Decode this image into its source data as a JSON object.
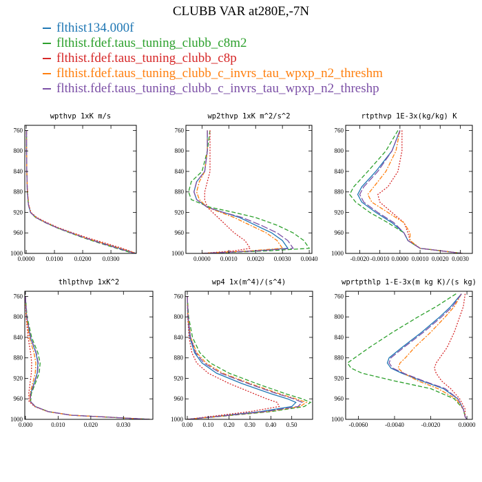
{
  "title": "CLUBB VAR at280E,-7N",
  "legend": [
    {
      "label": "flthist134.000f",
      "color": "#1f77b4",
      "dash": "solid"
    },
    {
      "label": "flthist.fdef.taus_tuning_clubb_c8m2",
      "color": "#2ca02c",
      "dash": "dashed"
    },
    {
      "label": "flthist.fdef.taus_tuning_clubb_c8p",
      "color": "#d62728",
      "dash": "dotted"
    },
    {
      "label": "flthist.fdef.taus_tuning_clubb_c_invrs_tau_wpxp_n2_threshm",
      "color": "#ff7f0e",
      "dash": "dashdot"
    },
    {
      "label": "flthist.fdef.taus_tuning_clubb_c_invrs_tau_wpxp_n2_threshp",
      "color": "#7b4fa6",
      "dash": "longdash"
    }
  ],
  "chart_data": [
    {
      "type": "line",
      "title": "wpthvp   1xK m/s",
      "xlim": [
        -0.0005,
        0.039
      ],
      "ylim": [
        1000,
        750
      ],
      "xticks": [
        0.0,
        0.01,
        0.02,
        0.03
      ],
      "xtick_labels": [
        "0.0000",
        "0.0100",
        "0.0200",
        "0.0300"
      ],
      "yticks": [
        760,
        800,
        840,
        880,
        920,
        960,
        1000
      ],
      "y": [
        760,
        800,
        840,
        880,
        905,
        920,
        930,
        940,
        950,
        960,
        970,
        980,
        990,
        1000
      ],
      "series": [
        {
          "x": [
            0.0001,
            0.0001,
            0.0002,
            0.0004,
            0.0008,
            0.0015,
            0.0035,
            0.007,
            0.011,
            0.016,
            0.021,
            0.027,
            0.033,
            0.039
          ]
        },
        {
          "x": [
            0.0001,
            0.0001,
            0.0002,
            0.0004,
            0.0008,
            0.0015,
            0.0033,
            0.0068,
            0.0108,
            0.0155,
            0.0205,
            0.026,
            0.032,
            0.038
          ]
        },
        {
          "x": [
            0.0001,
            0.0001,
            0.0002,
            0.0004,
            0.0009,
            0.0017,
            0.0038,
            0.0074,
            0.0115,
            0.0165,
            0.022,
            0.028,
            0.034,
            0.039
          ]
        },
        {
          "x": [
            0.0001,
            0.0001,
            0.0002,
            0.0005,
            0.0009,
            0.0016,
            0.0035,
            0.007,
            0.011,
            0.016,
            0.021,
            0.027,
            0.033,
            0.039
          ]
        },
        {
          "x": [
            0.0001,
            0.0001,
            0.0002,
            0.0004,
            0.0008,
            0.0015,
            0.0034,
            0.0069,
            0.0109,
            0.0158,
            0.021,
            0.0265,
            0.0325,
            0.0385
          ]
        }
      ]
    },
    {
      "type": "line",
      "title": "wp2thvp   1xK m^2/s^2",
      "xlim": [
        -0.0006,
        0.0041
      ],
      "ylim": [
        1000,
        750
      ],
      "xticks": [
        0.0,
        0.001,
        0.002,
        0.003,
        0.004
      ],
      "xtick_labels": [
        "0.0000",
        "0.0010",
        "0.0020",
        "0.0030",
        "0.0040"
      ],
      "yticks": [
        760,
        800,
        840,
        880,
        920,
        960,
        1000
      ],
      "y": [
        760,
        800,
        840,
        860,
        880,
        895,
        910,
        920,
        930,
        945,
        960,
        975,
        990,
        995,
        1000
      ],
      "series": [
        {
          "x": [
            0.0002,
            0.0002,
            0.0001,
            -0.0002,
            -0.0003,
            -0.0002,
            0.0002,
            0.0008,
            0.0014,
            0.002,
            0.0026,
            0.003,
            0.0032,
            0.002,
            0.0
          ]
        },
        {
          "x": [
            0.0003,
            0.0002,
            0.0,
            -0.0004,
            -0.0005,
            -0.0004,
            0.0003,
            0.0012,
            0.002,
            0.0028,
            0.0034,
            0.0038,
            0.004,
            0.0025,
            0.0
          ]
        },
        {
          "x": [
            0.0003,
            0.0003,
            0.0003,
            0.0002,
            0.0001,
            0.0001,
            0.0002,
            0.0004,
            0.0006,
            0.0009,
            0.0012,
            0.0016,
            0.0018,
            0.0012,
            0.0
          ]
        },
        {
          "x": [
            0.0002,
            0.0002,
            0.0001,
            -0.0001,
            -0.0002,
            -0.0001,
            0.0002,
            0.0007,
            0.0012,
            0.0018,
            0.0024,
            0.0028,
            0.003,
            0.0018,
            0.0
          ]
        },
        {
          "x": [
            0.0002,
            0.0002,
            0.0001,
            -0.0002,
            -0.0003,
            -0.0002,
            0.0002,
            0.0008,
            0.0015,
            0.0022,
            0.0028,
            0.0032,
            0.0034,
            0.0021,
            0.0
          ]
        }
      ]
    },
    {
      "type": "line",
      "title": "rtpthvp   1E-3x(kg/kg) K",
      "xlim": [
        -0.0027,
        0.0036
      ],
      "ylim": [
        1000,
        750
      ],
      "xticks": [
        -0.002,
        -0.001,
        0.0,
        0.001,
        0.002,
        0.003
      ],
      "xtick_labels": [
        "-0.0020",
        "-0.0010",
        "0.0000",
        "0.0010",
        "0.0020",
        "0.0030"
      ],
      "yticks": [
        760,
        800,
        840,
        880,
        920,
        960,
        1000
      ],
      "y": [
        760,
        800,
        840,
        870,
        885,
        900,
        920,
        940,
        960,
        975,
        990,
        1000
      ],
      "series": [
        {
          "x": [
            0.0,
            -0.0004,
            -0.0012,
            -0.0019,
            -0.0021,
            -0.0019,
            -0.0012,
            -0.0004,
            0.0002,
            0.0004,
            0.001,
            0.0031
          ]
        },
        {
          "x": [
            -0.0001,
            -0.0007,
            -0.0016,
            -0.0023,
            -0.0025,
            -0.0022,
            -0.0015,
            -0.0006,
            0.0002,
            0.0004,
            0.001,
            0.0031
          ]
        },
        {
          "x": [
            0.0001,
            0.0001,
            -0.0001,
            -0.0006,
            -0.0011,
            -0.001,
            -0.0004,
            0.0002,
            0.0004,
            0.0005,
            0.001,
            0.0031
          ]
        },
        {
          "x": [
            0.0,
            -0.0002,
            -0.0007,
            -0.0013,
            -0.0016,
            -0.0014,
            -0.0006,
            0.0002,
            0.0005,
            0.0005,
            0.001,
            0.0031
          ]
        },
        {
          "x": [
            0.0,
            -0.0004,
            -0.0011,
            -0.0018,
            -0.002,
            -0.0018,
            -0.0011,
            -0.0003,
            0.0002,
            0.0004,
            0.001,
            0.0031
          ]
        }
      ]
    },
    {
      "type": "line",
      "title": "thlpthvp   1xK^2",
      "xlim": [
        -0.0002,
        0.039
      ],
      "ylim": [
        1000,
        750
      ],
      "xticks": [
        0.0,
        0.01,
        0.02,
        0.03
      ],
      "xtick_labels": [
        "0.000",
        "0.010",
        "0.020",
        "0.030"
      ],
      "yticks": [
        760,
        800,
        840,
        880,
        920,
        960,
        1000
      ],
      "y": [
        760,
        800,
        840,
        870,
        890,
        910,
        930,
        950,
        965,
        975,
        985,
        992,
        1000
      ],
      "series": [
        {
          "x": [
            0.0,
            0.0004,
            0.0015,
            0.0032,
            0.0038,
            0.0036,
            0.0026,
            0.0016,
            0.0015,
            0.003,
            0.007,
            0.014,
            0.038
          ]
        },
        {
          "x": [
            0.0,
            0.0005,
            0.0019,
            0.0038,
            0.0045,
            0.0042,
            0.003,
            0.0018,
            0.0016,
            0.003,
            0.007,
            0.014,
            0.038
          ]
        },
        {
          "x": [
            0.0,
            0.0002,
            0.0008,
            0.0016,
            0.0019,
            0.0018,
            0.0014,
            0.001,
            0.0011,
            0.0028,
            0.0068,
            0.014,
            0.038
          ]
        },
        {
          "x": [
            0.0,
            0.0003,
            0.0012,
            0.0026,
            0.0032,
            0.003,
            0.0022,
            0.0014,
            0.0014,
            0.003,
            0.007,
            0.014,
            0.038
          ]
        },
        {
          "x": [
            0.0,
            0.0004,
            0.0016,
            0.0033,
            0.0039,
            0.0037,
            0.0027,
            0.0016,
            0.0015,
            0.003,
            0.007,
            0.014,
            0.038
          ]
        }
      ]
    },
    {
      "type": "line",
      "title": "wp4   1x(m^4)/(s^4)",
      "xlim": [
        -0.01,
        0.6
      ],
      "ylim": [
        1000,
        750
      ],
      "xticks": [
        0.0,
        0.1,
        0.2,
        0.3,
        0.4,
        0.5
      ],
      "xtick_labels": [
        "0.00",
        "0.10",
        "0.20",
        "0.30",
        "0.40",
        "0.50"
      ],
      "yticks": [
        760,
        800,
        840,
        880,
        920,
        960,
        1000
      ],
      "y": [
        760,
        800,
        840,
        870,
        890,
        910,
        930,
        950,
        960,
        967,
        975,
        985,
        995,
        1000
      ],
      "series": [
        {
          "x": [
            0.0,
            0.003,
            0.012,
            0.035,
            0.07,
            0.14,
            0.26,
            0.4,
            0.48,
            0.52,
            0.5,
            0.35,
            0.12,
            0.0
          ]
        },
        {
          "x": [
            0.0,
            0.006,
            0.025,
            0.06,
            0.11,
            0.2,
            0.33,
            0.47,
            0.55,
            0.59,
            0.56,
            0.4,
            0.14,
            0.0
          ]
        },
        {
          "x": [
            0.0,
            0.002,
            0.008,
            0.022,
            0.045,
            0.1,
            0.2,
            0.32,
            0.38,
            0.43,
            0.44,
            0.3,
            0.1,
            0.0
          ]
        },
        {
          "x": [
            0.0,
            0.004,
            0.016,
            0.045,
            0.09,
            0.17,
            0.3,
            0.44,
            0.52,
            0.57,
            0.54,
            0.38,
            0.13,
            0.0
          ]
        },
        {
          "x": [
            0.0,
            0.004,
            0.015,
            0.04,
            0.08,
            0.16,
            0.29,
            0.43,
            0.51,
            0.55,
            0.53,
            0.37,
            0.13,
            0.0
          ]
        }
      ]
    },
    {
      "type": "line",
      "title": "wprtpthlp   1-E-3x(m kg K)/(s kg)",
      "xlim": [
        -0.0067,
        0.0003
      ],
      "ylim": [
        1000,
        750
      ],
      "xticks": [
        -0.006,
        -0.004,
        -0.002,
        0.0
      ],
      "xtick_labels": [
        "-0.0060",
        "-0.0040",
        "-0.0020",
        "0.0000"
      ],
      "yticks": [
        760,
        800,
        840,
        880,
        920,
        960,
        1000
      ],
      "y": [
        755,
        780,
        800,
        830,
        860,
        880,
        890,
        900,
        910,
        925,
        940,
        960,
        980,
        995,
        1000
      ],
      "series": [
        {
          "x": [
            -0.0003,
            -0.0009,
            -0.0015,
            -0.0025,
            -0.0036,
            -0.0043,
            -0.0044,
            -0.0042,
            -0.0036,
            -0.0025,
            -0.0013,
            -0.0005,
            -0.0002,
            -0.0001,
            0.0
          ]
        },
        {
          "x": [
            -0.0006,
            -0.0017,
            -0.0027,
            -0.0041,
            -0.0054,
            -0.0062,
            -0.0066,
            -0.0064,
            -0.0058,
            -0.004,
            -0.002,
            -0.0007,
            -0.0002,
            -0.0001,
            0.0
          ]
        },
        {
          "x": [
            -0.0001,
            -0.0002,
            -0.0004,
            -0.0007,
            -0.0011,
            -0.0015,
            -0.0017,
            -0.0018,
            -0.0017,
            -0.0014,
            -0.0009,
            -0.0004,
            -0.0001,
            -0.0001,
            0.0
          ]
        },
        {
          "x": [
            -0.0003,
            -0.0007,
            -0.0012,
            -0.002,
            -0.0029,
            -0.0034,
            -0.0037,
            -0.0038,
            -0.0035,
            -0.0027,
            -0.0016,
            -0.0006,
            -0.0002,
            -0.0001,
            0.0
          ]
        },
        {
          "x": [
            -0.0003,
            -0.0008,
            -0.0014,
            -0.0024,
            -0.0035,
            -0.0042,
            -0.0043,
            -0.0041,
            -0.0035,
            -0.0024,
            -0.0012,
            -0.0005,
            -0.0002,
            -0.0001,
            0.0
          ]
        }
      ]
    }
  ]
}
